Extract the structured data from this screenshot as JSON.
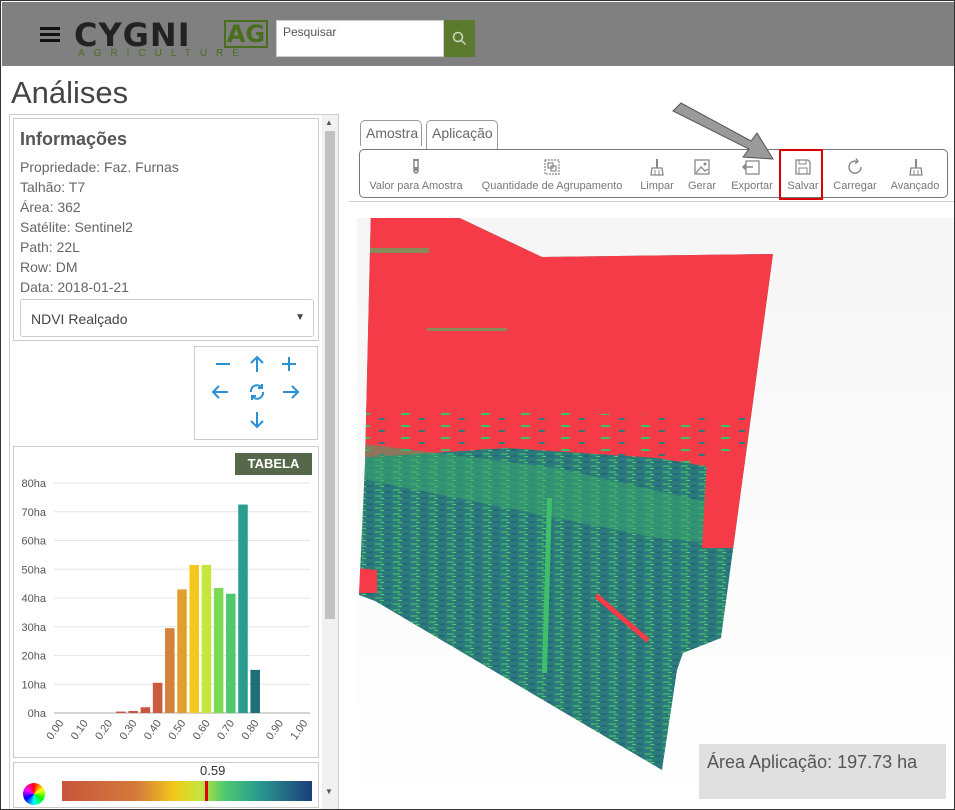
{
  "header": {
    "logo_main": "CYGNI",
    "logo_ag": "AG",
    "logo_sub": "AGRICULTURE",
    "search_placeholder": "Pesquisar"
  },
  "page_title": "Análises",
  "info": {
    "title": "Informações",
    "lines": [
      "Propriedade: Faz. Furnas",
      "Talhão: T7",
      "Área: 362",
      "Satélite: Sentinel2",
      "Path: 22L",
      "Row: DM",
      "Data: 2018-01-21"
    ],
    "layer_select": "NDVI Realçado"
  },
  "chart_button": "TABELA",
  "chart_data": {
    "type": "bar",
    "categories": [
      "0.00",
      "0.05",
      "0.10",
      "0.15",
      "0.20",
      "0.25",
      "0.30",
      "0.35",
      "0.40",
      "0.45",
      "0.50",
      "0.55",
      "0.60",
      "0.65",
      "0.70",
      "0.75",
      "0.80",
      "0.85",
      "0.90",
      "0.95",
      "1.00"
    ],
    "x_tick_labels": [
      "0.00",
      "0.10",
      "0.20",
      "0.30",
      "0.40",
      "0.50",
      "0.60",
      "0.70",
      "0.80",
      "0.90",
      "1.00"
    ],
    "values": [
      0,
      0,
      0,
      0,
      0,
      0.5,
      0.7,
      2.0,
      10.5,
      29.5,
      43,
      51.5,
      51.5,
      43.5,
      41.5,
      72.5,
      15,
      0,
      0,
      0,
      0
    ],
    "colors": [
      "#c8553d",
      "#c8553d",
      "#c8553d",
      "#c8553d",
      "#c8553d",
      "#c8553d",
      "#c8553d",
      "#c8553d",
      "#cc5a3e",
      "#d4823a",
      "#e0a030",
      "#f2c91a",
      "#c6e63e",
      "#7ed957",
      "#4ec96e",
      "#2a9d8f",
      "#1f6f7a",
      "#1a3e7a",
      "#1a3e7a",
      "#1a3e7a",
      "#1a3e7a"
    ],
    "y_tick_labels": [
      "0ha",
      "10ha",
      "20ha",
      "30ha",
      "40ha",
      "50ha",
      "60ha",
      "70ha",
      "80ha"
    ],
    "ylim": [
      0,
      80
    ],
    "grid": true
  },
  "legend_value": "0.59",
  "tabs": [
    {
      "label": "Amostra"
    },
    {
      "label": "Aplicação"
    }
  ],
  "toolbar": [
    {
      "label": "Valor para Amostra",
      "icon": "test-tube-icon"
    },
    {
      "label": "Quantidade de Agrupamento",
      "icon": "grid-group-icon"
    },
    {
      "label": "Limpar",
      "icon": "broom-icon"
    },
    {
      "label": "Gerar",
      "icon": "image-icon"
    },
    {
      "label": "Exportar",
      "icon": "export-icon"
    },
    {
      "label": "Salvar",
      "icon": "save-icon"
    },
    {
      "label": "Carregar",
      "icon": "refresh-icon"
    },
    {
      "label": "Avançado",
      "icon": "broom-advanced-icon"
    }
  ],
  "area_label": "Área Aplicação: 197.73 ha",
  "colors": {
    "header_bg": "#808080",
    "brand_green": "#5c7a2e",
    "map_red": "#f43b47",
    "map_teal": "#1f6f7a",
    "map_green": "#3fbf6a",
    "highlight_red": "#dd0000"
  }
}
